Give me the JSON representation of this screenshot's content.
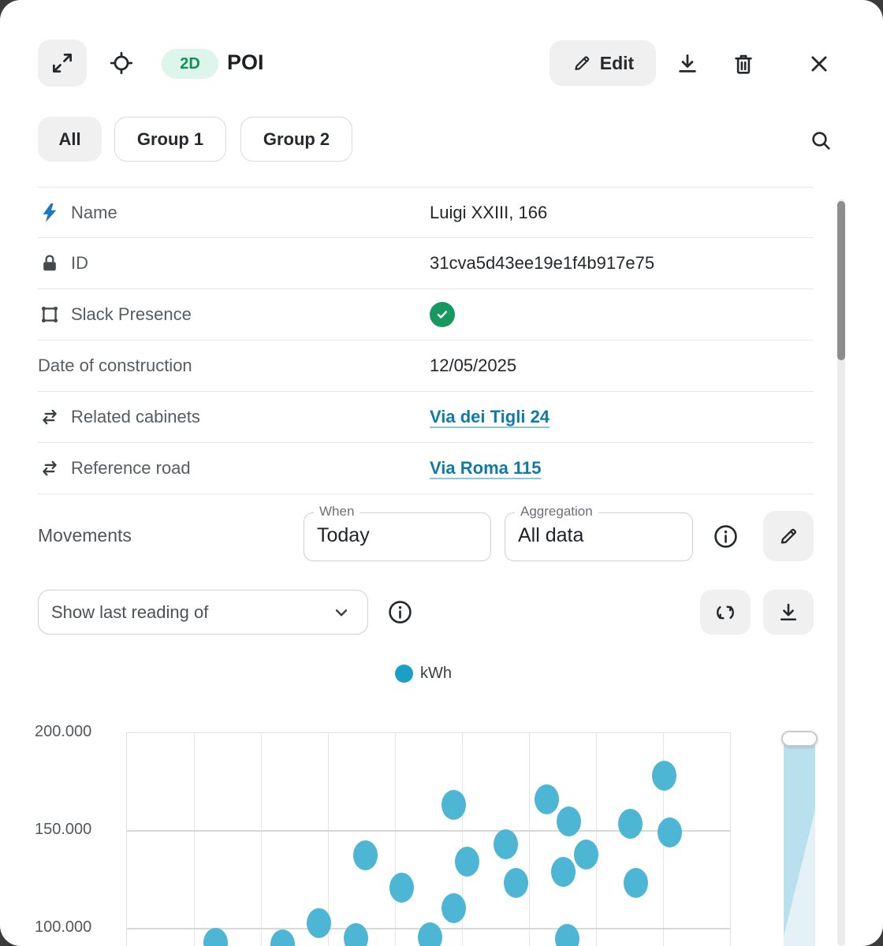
{
  "header": {
    "title": "POI",
    "badge": "2D",
    "edit_label": "Edit"
  },
  "tabs": {
    "items": [
      {
        "label": "All",
        "active": true
      },
      {
        "label": "Group 1",
        "active": false
      },
      {
        "label": "Group 2",
        "active": false
      }
    ]
  },
  "properties": {
    "rows": [
      {
        "icon": "lightning-icon",
        "icon_color": "#1e78bf",
        "label": "Name",
        "type": "text",
        "value": "Luigi XXIII, 166"
      },
      {
        "icon": "lock-icon",
        "icon_color": "#46494c",
        "label": "ID",
        "type": "text",
        "value": "31cva5d43ee19e1f4b917e75"
      },
      {
        "icon": "area-icon",
        "icon_color": "#46494c",
        "label": "Slack Presence",
        "type": "check",
        "value": true
      },
      {
        "icon": null,
        "icon_color": null,
        "label": "Date of construction",
        "type": "text",
        "value": "12/05/2025"
      },
      {
        "icon": "transfer-icon",
        "icon_color": "#3a3f42",
        "label": "Related cabinets",
        "type": "link",
        "value": "Via dei Tigli 24"
      },
      {
        "icon": "transfer-icon",
        "icon_color": "#3a3f42",
        "label": "Reference road",
        "type": "link",
        "value": "Via Roma 115"
      }
    ]
  },
  "movements": {
    "label": "Movements",
    "when_label": "When",
    "when_value": "Today",
    "aggregation_label": "Aggregation",
    "aggregation_value": "All data"
  },
  "reading": {
    "dropdown_value": "Show last reading of"
  },
  "colors": {
    "accent_teal": "#1b9fc9",
    "scatter_point": "#4db6d4",
    "link": "#0f7ba6",
    "badge_green_bg": "#ddf5ea",
    "badge_green_text": "#0d9157",
    "check_green": "#16995e",
    "slider_fill": "#b9e0ed"
  },
  "chart_data": {
    "type": "scatter",
    "title": "",
    "xlabel": "",
    "ylabel": "kWh",
    "legend": [
      {
        "label": "kWh",
        "color": "#1b9fc9"
      }
    ],
    "legend_position": "top-center",
    "grid": {
      "on": true,
      "columns": 9
    },
    "y_ticks": [
      {
        "label": "200.000",
        "value": 200000
      },
      {
        "label": "150.000",
        "value": 150000
      },
      {
        "label": "100.000",
        "value": 100000
      }
    ],
    "y_axis_top_value": 200000,
    "y_value_per_step": 50000,
    "y_visible_range": [
      90700,
      200000
    ],
    "x_axis_labels_visible": false,
    "series": [
      {
        "name": "kWh",
        "color": "#4db6d4",
        "points": [
          {
            "x_pct": 14.7,
            "kwh": 92700
          },
          {
            "x_pct": 25.8,
            "kwh": 92000
          },
          {
            "x_pct": 31.8,
            "kwh": 102800
          },
          {
            "x_pct": 37.9,
            "kwh": 95200
          },
          {
            "x_pct": 39.5,
            "kwh": 137500
          },
          {
            "x_pct": 45.4,
            "kwh": 121000
          },
          {
            "x_pct": 50.1,
            "kwh": 95400
          },
          {
            "x_pct": 54.0,
            "kwh": 163300
          },
          {
            "x_pct": 54.1,
            "kwh": 110500
          },
          {
            "x_pct": 56.3,
            "kwh": 134300
          },
          {
            "x_pct": 62.6,
            "kwh": 143100
          },
          {
            "x_pct": 64.3,
            "kwh": 123400
          },
          {
            "x_pct": 69.4,
            "kwh": 166100
          },
          {
            "x_pct": 72.2,
            "kwh": 129000
          },
          {
            "x_pct": 72.8,
            "kwh": 94800
          },
          {
            "x_pct": 73.1,
            "kwh": 154800
          },
          {
            "x_pct": 76.0,
            "kwh": 137900
          },
          {
            "x_pct": 83.3,
            "kwh": 153600
          },
          {
            "x_pct": 84.1,
            "kwh": 123400
          },
          {
            "x_pct": 88.9,
            "kwh": 178200
          },
          {
            "x_pct": 89.8,
            "kwh": 149200
          }
        ]
      }
    ]
  }
}
